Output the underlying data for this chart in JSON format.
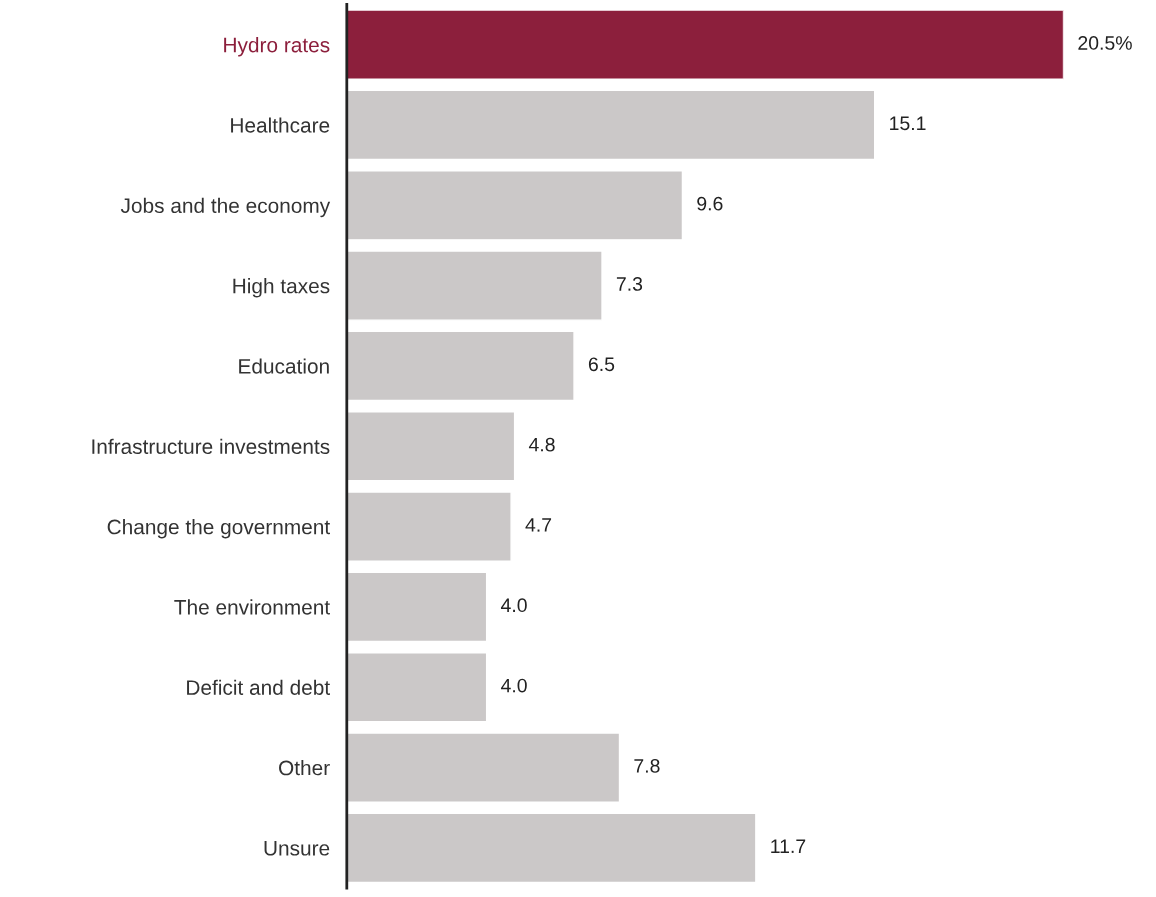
{
  "chart_data": {
    "type": "bar",
    "orientation": "horizontal",
    "categories": [
      "Hydro rates",
      "Healthcare",
      "Jobs and the economy",
      "High taxes",
      "Education",
      "Infrastructure investments",
      "Change the government",
      "The environment",
      "Deficit and debt",
      "Other",
      "Unsure"
    ],
    "values": [
      20.5,
      15.1,
      9.6,
      7.3,
      6.5,
      4.8,
      4.7,
      4.0,
      4.0,
      7.8,
      11.7
    ],
    "value_labels": [
      "20.5%",
      "15.1",
      "9.6",
      "7.3",
      "6.5",
      "4.8",
      "4.7",
      "4.0",
      "4.0",
      "7.8",
      "11.7"
    ],
    "colors": [
      "#8c1f3c",
      "#cbc8c8",
      "#cbc8c8",
      "#cbc8c8",
      "#cbc8c8",
      "#cbc8c8",
      "#cbc8c8",
      "#cbc8c8",
      "#cbc8c8",
      "#cbc8c8",
      "#cbc8c8"
    ],
    "tick_labels": "y",
    "grid": false
  }
}
